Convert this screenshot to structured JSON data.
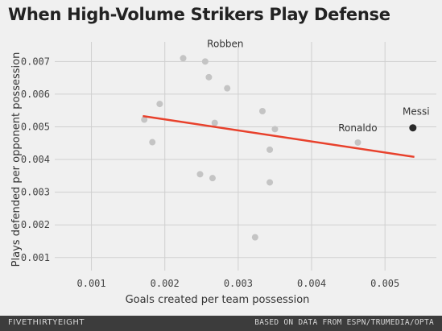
{
  "header": {
    "title": "When High-Volume Strikers Play Defense"
  },
  "footer": {
    "brand": "FIVETHIRTYEIGHT",
    "source": "BASED ON DATA FROM ESPN/TRUMEDIA/OPTA"
  },
  "colors": {
    "background": "#f0f0f0",
    "grid": "#cfcfcf",
    "point": "#c4c4c4",
    "highlight_point": "#2a2a2a",
    "trend_line": "#e8412c"
  },
  "chart_data": {
    "type": "scatter",
    "title": "When High-Volume Strikers Play Defense",
    "xlabel": "Goals created per team possession",
    "ylabel": "Plays defended per opponent possession",
    "xlim": [
      0.0005,
      0.0057
    ],
    "ylim": [
      0.0006,
      0.0076
    ],
    "xticks": [
      0.001,
      0.002,
      0.003,
      0.004,
      0.005
    ],
    "xtick_labels": [
      "0.001",
      "0.002",
      "0.003",
      "0.004",
      "0.005"
    ],
    "yticks": [
      0.001,
      0.002,
      0.003,
      0.004,
      0.005,
      0.006,
      0.007
    ],
    "ytick_labels": [
      "0.001",
      "0.002",
      "0.003",
      "0.004",
      "0.005",
      "0.006",
      "0.007"
    ],
    "grid": true,
    "points": [
      {
        "x": 0.00225,
        "y": 0.0071
      },
      {
        "x": 0.00255,
        "y": 0.007,
        "label": "Robben"
      },
      {
        "x": 0.0026,
        "y": 0.00652
      },
      {
        "x": 0.00285,
        "y": 0.00618
      },
      {
        "x": 0.00193,
        "y": 0.0057
      },
      {
        "x": 0.00172,
        "y": 0.00522
      },
      {
        "x": 0.00268,
        "y": 0.00512
      },
      {
        "x": 0.00333,
        "y": 0.00548
      },
      {
        "x": 0.0035,
        "y": 0.00493
      },
      {
        "x": 0.00183,
        "y": 0.00453
      },
      {
        "x": 0.00343,
        "y": 0.0043
      },
      {
        "x": 0.00248,
        "y": 0.00355
      },
      {
        "x": 0.00265,
        "y": 0.00343
      },
      {
        "x": 0.00343,
        "y": 0.0033
      },
      {
        "x": 0.00323,
        "y": 0.00162
      },
      {
        "x": 0.00463,
        "y": 0.00452,
        "label": "Ronaldo"
      },
      {
        "x": 0.00538,
        "y": 0.00497,
        "label": "Messi",
        "highlight": true
      }
    ],
    "trend_line": {
      "x": [
        0.0017,
        0.0054
      ],
      "y": [
        0.00533,
        0.00408
      ]
    }
  }
}
